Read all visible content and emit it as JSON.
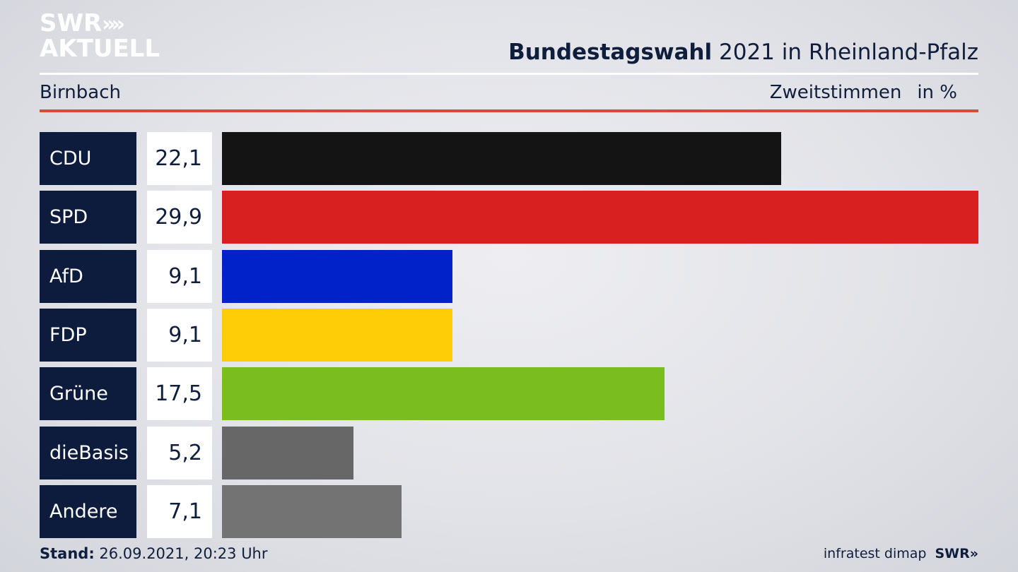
{
  "branding": {
    "logo_line1": "SWR",
    "logo_chevrons": "»",
    "logo_line2": "AKTUELL",
    "footer_source": "infratest dimap",
    "footer_logo": "SWR»"
  },
  "header": {
    "title_bold": "Bundestagswahl",
    "title_rest": "2021 in Rheinland-Pfalz",
    "region": "Birnbach",
    "subtitle_left": "Zweitstimmen",
    "subtitle_right": "in %"
  },
  "footer": {
    "stand_label": "Stand:",
    "stand_value": "26.09.2021, 20:23 Uhr"
  },
  "colors": {
    "background": "#e4e5ea",
    "navy": "#0d1b3d",
    "accent_red_rule": "#d9473e"
  },
  "chart_data": {
    "type": "bar",
    "orientation": "horizontal",
    "categories": [
      "CDU",
      "SPD",
      "AfD",
      "FDP",
      "Grüne",
      "dieBasis",
      "Andere"
    ],
    "values": [
      22.1,
      29.9,
      9.1,
      9.1,
      17.5,
      5.2,
      7.1
    ],
    "value_labels": [
      "22,1",
      "29,9",
      "9,1",
      "9,1",
      "17,5",
      "5,2",
      "7,1"
    ],
    "colors": [
      "#141414",
      "#d82020",
      "#0022c8",
      "#ffcc08",
      "#79bd1e",
      "#676767",
      "#737373"
    ],
    "xlim": [
      0,
      29.9
    ],
    "unit": "%",
    "grid": false
  }
}
